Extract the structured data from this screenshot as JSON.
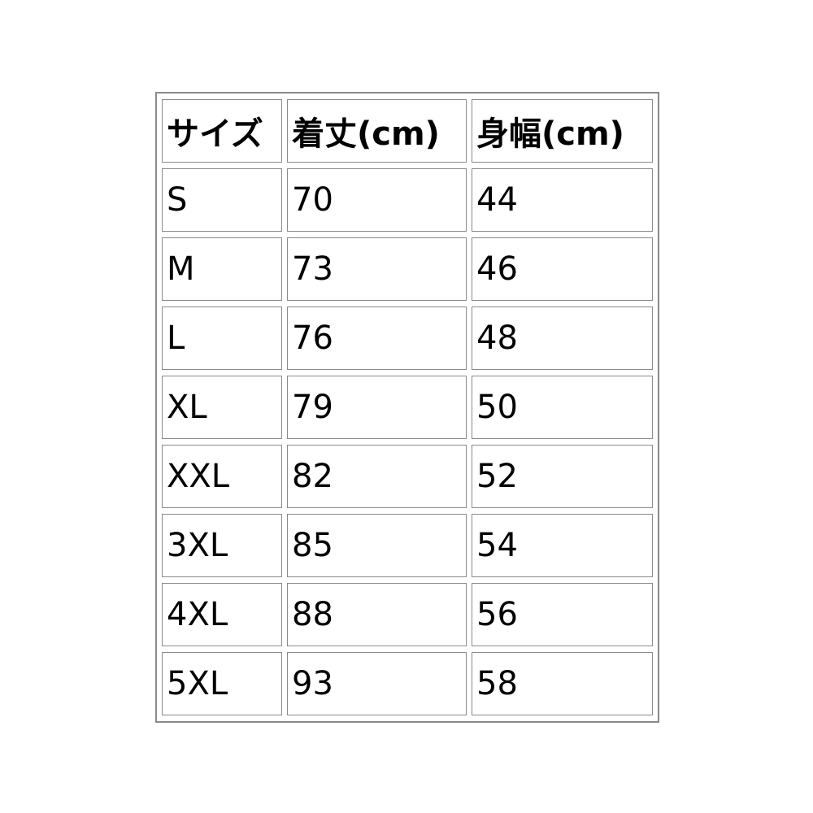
{
  "table": {
    "header": [
      "サイズ",
      "着丈(cm)",
      "身幅(cm)"
    ],
    "rows": [
      [
        "S",
        "70",
        "44"
      ],
      [
        "M",
        "73",
        "46"
      ],
      [
        "L",
        "76",
        "48"
      ],
      [
        "XL",
        "79",
        "50"
      ],
      [
        "XXL",
        "82",
        "52"
      ],
      [
        "3XL",
        "85",
        "54"
      ],
      [
        "4XL",
        "88",
        "56"
      ],
      [
        "5XL",
        "93",
        "58"
      ]
    ]
  }
}
